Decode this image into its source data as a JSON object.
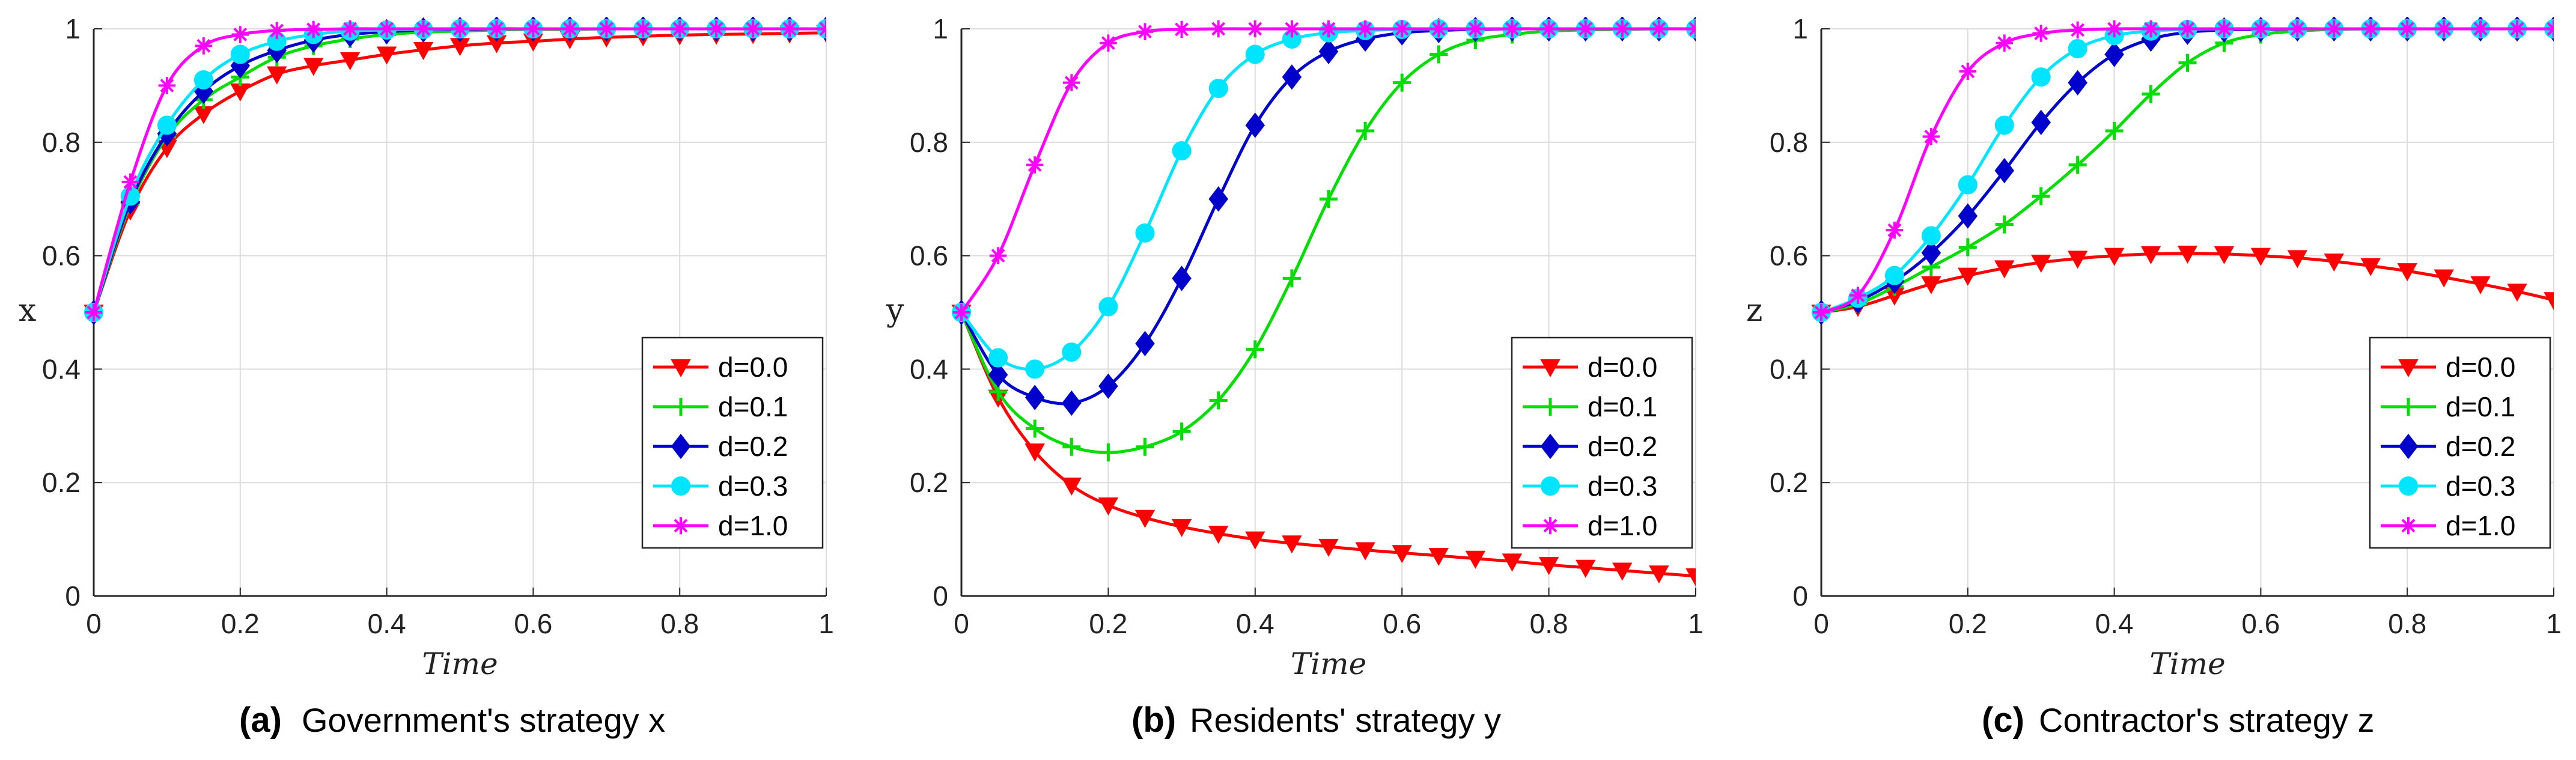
{
  "chart_data": [
    {
      "type": "line",
      "caption_letter": "(a)",
      "caption_text": "Government's strategy x",
      "xlabel": "Time",
      "ylabel": "x",
      "xlim": [
        0,
        1
      ],
      "ylim": [
        0,
        1
      ],
      "xticks": [
        0,
        0.2,
        0.4,
        0.6,
        0.8,
        1
      ],
      "xtick_labels": [
        "0",
        "0.2",
        "0.4",
        "0.6",
        "0.8",
        "1"
      ],
      "yticks": [
        0,
        0.2,
        0.4,
        0.6,
        0.8,
        1
      ],
      "ytick_labels": [
        "0",
        "0.2",
        "0.4",
        "0.6",
        "0.8",
        "1"
      ],
      "grid": true,
      "legend_position": "bottom-right",
      "x": [
        0,
        0.05,
        0.1,
        0.15,
        0.2,
        0.25,
        0.3,
        0.35,
        0.4,
        0.45,
        0.5,
        0.55,
        0.6,
        0.65,
        0.7,
        0.75,
        0.8,
        0.85,
        0.9,
        0.95,
        1.0
      ],
      "series": [
        {
          "name": "d=0.0",
          "values": [
            0.5,
            0.68,
            0.79,
            0.85,
            0.89,
            0.92,
            0.935,
            0.945,
            0.955,
            0.963,
            0.97,
            0.975,
            0.978,
            0.982,
            0.985,
            0.987,
            0.989,
            0.99,
            0.991,
            0.992,
            0.993
          ]
        },
        {
          "name": "d=0.1",
          "values": [
            0.5,
            0.69,
            0.81,
            0.875,
            0.915,
            0.95,
            0.97,
            0.982,
            0.99,
            0.994,
            0.996,
            0.998,
            0.999,
            0.999,
            1.0,
            1.0,
            1.0,
            1.0,
            1.0,
            1.0,
            1.0
          ]
        },
        {
          "name": "d=0.2",
          "values": [
            0.5,
            0.695,
            0.815,
            0.89,
            0.935,
            0.962,
            0.98,
            0.99,
            0.995,
            0.998,
            0.999,
            1.0,
            1.0,
            1.0,
            1.0,
            1.0,
            1.0,
            1.0,
            1.0,
            1.0,
            1.0
          ]
        },
        {
          "name": "d=0.3",
          "values": [
            0.5,
            0.705,
            0.83,
            0.91,
            0.955,
            0.978,
            0.99,
            0.996,
            0.998,
            0.999,
            1.0,
            1.0,
            1.0,
            1.0,
            1.0,
            1.0,
            1.0,
            1.0,
            1.0,
            1.0,
            1.0
          ]
        },
        {
          "name": "d=1.0",
          "values": [
            0.5,
            0.73,
            0.9,
            0.97,
            0.99,
            0.997,
            0.999,
            1.0,
            1.0,
            1.0,
            1.0,
            1.0,
            1.0,
            1.0,
            1.0,
            1.0,
            1.0,
            1.0,
            1.0,
            1.0,
            1.0
          ]
        }
      ]
    },
    {
      "type": "line",
      "caption_letter": "(b)",
      "caption_text": "Residents' strategy y",
      "xlabel": "Time",
      "ylabel": "y",
      "xlim": [
        0,
        1
      ],
      "ylim": [
        0,
        1
      ],
      "xticks": [
        0,
        0.2,
        0.4,
        0.6,
        0.8,
        1
      ],
      "xtick_labels": [
        "0",
        "0.2",
        "0.4",
        "0.6",
        "0.8",
        "1"
      ],
      "yticks": [
        0,
        0.2,
        0.4,
        0.6,
        0.8,
        1
      ],
      "ytick_labels": [
        "0",
        "0.2",
        "0.4",
        "0.6",
        "0.8",
        "1"
      ],
      "grid": true,
      "legend_position": "bottom-right",
      "x": [
        0,
        0.05,
        0.1,
        0.15,
        0.2,
        0.25,
        0.3,
        0.35,
        0.4,
        0.45,
        0.5,
        0.55,
        0.6,
        0.65,
        0.7,
        0.75,
        0.8,
        0.85,
        0.9,
        0.95,
        1.0
      ],
      "series": [
        {
          "name": "d=0.0",
          "values": [
            0.5,
            0.35,
            0.255,
            0.195,
            0.16,
            0.138,
            0.122,
            0.11,
            0.1,
            0.093,
            0.087,
            0.081,
            0.076,
            0.071,
            0.066,
            0.061,
            0.055,
            0.05,
            0.045,
            0.04,
            0.035
          ]
        },
        {
          "name": "d=0.1",
          "values": [
            0.5,
            0.36,
            0.295,
            0.263,
            0.253,
            0.263,
            0.29,
            0.345,
            0.435,
            0.56,
            0.7,
            0.82,
            0.905,
            0.955,
            0.98,
            0.99,
            0.996,
            0.998,
            0.999,
            1.0,
            1.0
          ]
        },
        {
          "name": "d=0.2",
          "values": [
            0.5,
            0.39,
            0.35,
            0.34,
            0.37,
            0.445,
            0.56,
            0.7,
            0.83,
            0.915,
            0.96,
            0.982,
            0.993,
            0.997,
            0.999,
            1.0,
            1.0,
            1.0,
            1.0,
            1.0,
            1.0
          ]
        },
        {
          "name": "d=0.3",
          "values": [
            0.5,
            0.42,
            0.4,
            0.43,
            0.51,
            0.64,
            0.785,
            0.895,
            0.955,
            0.982,
            0.993,
            0.997,
            0.999,
            1.0,
            1.0,
            1.0,
            1.0,
            1.0,
            1.0,
            1.0,
            1.0
          ]
        },
        {
          "name": "d=1.0",
          "values": [
            0.5,
            0.6,
            0.76,
            0.905,
            0.975,
            0.995,
            0.999,
            1.0,
            1.0,
            1.0,
            1.0,
            1.0,
            1.0,
            1.0,
            1.0,
            1.0,
            1.0,
            1.0,
            1.0,
            1.0,
            1.0
          ]
        }
      ]
    },
    {
      "type": "line",
      "caption_letter": "(c)",
      "caption_text": "Contractor's strategy z",
      "xlabel": "Time",
      "ylabel": "z",
      "xlim": [
        0,
        1
      ],
      "ylim": [
        0,
        1
      ],
      "xticks": [
        0,
        0.2,
        0.4,
        0.6,
        0.8,
        1
      ],
      "xtick_labels": [
        "0",
        "0.2",
        "0.4",
        "0.6",
        "0.8",
        "1"
      ],
      "yticks": [
        0,
        0.2,
        0.4,
        0.6,
        0.8,
        1
      ],
      "ytick_labels": [
        "0",
        "0.2",
        "0.4",
        "0.6",
        "0.8",
        "1"
      ],
      "grid": true,
      "legend_position": "bottom-right",
      "x": [
        0,
        0.05,
        0.1,
        0.15,
        0.2,
        0.25,
        0.3,
        0.35,
        0.4,
        0.45,
        0.5,
        0.55,
        0.6,
        0.65,
        0.7,
        0.75,
        0.8,
        0.85,
        0.9,
        0.95,
        1.0
      ],
      "series": [
        {
          "name": "d=0.0",
          "values": [
            0.5,
            0.51,
            0.53,
            0.55,
            0.565,
            0.578,
            0.588,
            0.595,
            0.6,
            0.603,
            0.604,
            0.603,
            0.6,
            0.596,
            0.59,
            0.582,
            0.573,
            0.562,
            0.55,
            0.537,
            0.522
          ]
        },
        {
          "name": "d=0.1",
          "values": [
            0.5,
            0.515,
            0.545,
            0.58,
            0.615,
            0.655,
            0.705,
            0.76,
            0.82,
            0.885,
            0.94,
            0.975,
            0.99,
            0.996,
            0.999,
            1.0,
            1.0,
            1.0,
            1.0,
            1.0,
            1.0
          ]
        },
        {
          "name": "d=0.2",
          "values": [
            0.5,
            0.52,
            0.555,
            0.605,
            0.67,
            0.75,
            0.835,
            0.905,
            0.955,
            0.982,
            0.994,
            0.998,
            0.999,
            1.0,
            1.0,
            1.0,
            1.0,
            1.0,
            1.0,
            1.0,
            1.0
          ]
        },
        {
          "name": "d=0.3",
          "values": [
            0.5,
            0.525,
            0.565,
            0.635,
            0.725,
            0.83,
            0.915,
            0.965,
            0.988,
            0.996,
            0.999,
            1.0,
            1.0,
            1.0,
            1.0,
            1.0,
            1.0,
            1.0,
            1.0,
            1.0,
            1.0
          ]
        },
        {
          "name": "d=1.0",
          "values": [
            0.5,
            0.53,
            0.645,
            0.81,
            0.925,
            0.975,
            0.992,
            0.998,
            1.0,
            1.0,
            1.0,
            1.0,
            1.0,
            1.0,
            1.0,
            1.0,
            1.0,
            1.0,
            1.0,
            1.0,
            1.0
          ]
        }
      ]
    }
  ],
  "series_styles": [
    {
      "color": "#ff0000",
      "marker": "triangle-down"
    },
    {
      "color": "#00dd00",
      "marker": "plus"
    },
    {
      "color": "#0000cc",
      "marker": "diamond"
    },
    {
      "color": "#00e5ff",
      "marker": "circle"
    },
    {
      "color": "#ff00ff",
      "marker": "asterisk"
    }
  ]
}
